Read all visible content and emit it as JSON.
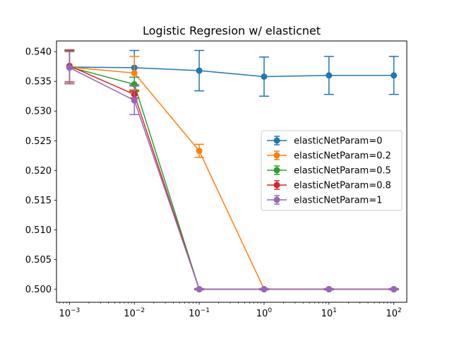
{
  "chart_data": {
    "type": "line",
    "title": "Logistic Regresion w/ elasticnet",
    "xlabel": "",
    "ylabel": "",
    "xscale": "log",
    "x": [
      0.001,
      0.01,
      0.1,
      1,
      10,
      100
    ],
    "x_tick_labels": [
      {
        "base": "10",
        "exp": "−3"
      },
      {
        "base": "10",
        "exp": "−2"
      },
      {
        "base": "10",
        "exp": "−1"
      },
      {
        "base": "10",
        "exp": "0"
      },
      {
        "base": "10",
        "exp": "1"
      },
      {
        "base": "10",
        "exp": "2"
      }
    ],
    "ylim": [
      0.4978,
      0.5418
    ],
    "y_ticks": [
      "0.500",
      "0.505",
      "0.510",
      "0.515",
      "0.520",
      "0.525",
      "0.530",
      "0.535",
      "0.540"
    ],
    "grid": false,
    "legend_position": "center-right",
    "series": [
      {
        "name": "elasticNetParam=0",
        "color": "#1f77b4",
        "values": [
          0.5374,
          0.5373,
          0.5368,
          0.5358,
          0.536,
          0.536
        ],
        "errors": [
          0.0028,
          0.0029,
          0.0034,
          0.0033,
          0.0032,
          0.0032
        ]
      },
      {
        "name": "elasticNetParam=0.2",
        "color": "#ff7f0e",
        "values": [
          0.5374,
          0.5364,
          0.5233,
          0.5,
          0.5,
          0.5
        ],
        "errors": [
          0.0028,
          0.0028,
          0.0011,
          0.0001,
          0.0001,
          0.0001
        ]
      },
      {
        "name": "elasticNetParam=0.5",
        "color": "#2ca02c",
        "values": [
          0.5374,
          0.5345,
          0.5,
          0.5,
          0.5,
          0.5
        ],
        "errors": [
          0.0028,
          0.0012,
          0.0001,
          0.0001,
          0.0001,
          0.0001
        ]
      },
      {
        "name": "elasticNetParam=0.8",
        "color": "#d62728",
        "values": [
          0.5376,
          0.5328,
          0.5,
          0.5,
          0.5,
          0.5
        ],
        "errors": [
          0.0027,
          0.0006,
          0.0001,
          0.0001,
          0.0001,
          0.0001
        ]
      },
      {
        "name": "elasticNetParam=1",
        "color": "#9467bd",
        "values": [
          0.5373,
          0.5318,
          0.5,
          0.5,
          0.5,
          0.5
        ],
        "errors": [
          0.0027,
          0.0024,
          0.0001,
          0.0001,
          0.0001,
          0.0001
        ]
      }
    ]
  }
}
